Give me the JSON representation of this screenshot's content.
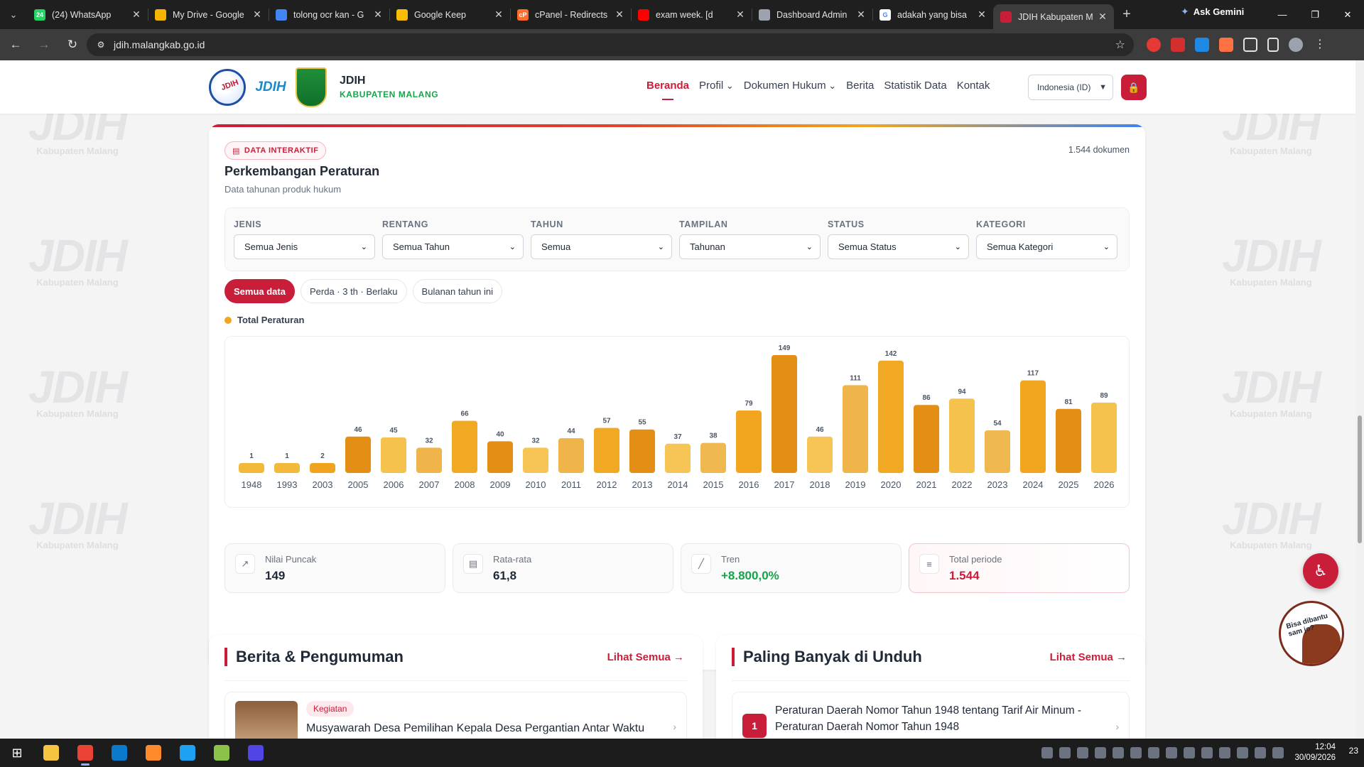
{
  "browser": {
    "tabs": [
      {
        "title": "(24) WhatsApp",
        "icon": "whatsapp-icon",
        "color": "#25d366",
        "badge": "24"
      },
      {
        "title": "My Drive - Google",
        "icon": "google-drive-icon",
        "color": "#f4b400",
        "badge": ""
      },
      {
        "title": "tolong ocr kan - G",
        "icon": "gemini-icon",
        "color": "#4285f4",
        "badge": ""
      },
      {
        "title": "Google Keep",
        "icon": "keep-icon",
        "color": "#fbbc04",
        "badge": ""
      },
      {
        "title": "cPanel - Redirects",
        "icon": "cpanel-icon",
        "color": "#ff6c2c",
        "badge": "cP"
      },
      {
        "title": "exam week. [d",
        "icon": "youtube-icon",
        "color": "#ff0000",
        "badge": ""
      },
      {
        "title": "Dashboard Admin",
        "icon": "admin-icon",
        "color": "#9ca3af",
        "badge": ""
      },
      {
        "title": "adakah yang bisa",
        "icon": "google-icon",
        "color": "#ffffff",
        "badge": "G"
      },
      {
        "title": "JDIH Kabupaten M",
        "icon": "jdih-icon",
        "color": "#c81e3a",
        "badge": ""
      }
    ],
    "active_tab": 8,
    "gemini_label": "Ask Gemini",
    "url": "jdih.malangkab.go.id"
  },
  "site": {
    "brand_title": "JDIH",
    "brand_subtitle": "KABUPATEN MALANG",
    "logo_text": "JDIH",
    "nav": [
      {
        "label": "Beranda",
        "active": true,
        "dropdown": false
      },
      {
        "label": "Profil",
        "active": false,
        "dropdown": true
      },
      {
        "label": "Dokumen Hukum",
        "active": false,
        "dropdown": true
      },
      {
        "label": "Berita",
        "active": false,
        "dropdown": false
      },
      {
        "label": "Statistik Data",
        "active": false,
        "dropdown": false
      },
      {
        "label": "Kontak",
        "active": false,
        "dropdown": false
      }
    ],
    "language": "Indonesia (ID)",
    "watermark_text": "Kabupaten Malang"
  },
  "card": {
    "badge": "DATA INTERAKTIF",
    "doc_count": "1.544 dokumen",
    "title": "Perkembangan Peraturan",
    "subtitle": "Data tahunan produk hukum",
    "filters": [
      {
        "label": "JENIS",
        "value": "Semua Jenis"
      },
      {
        "label": "RENTANG",
        "value": "Semua Tahun"
      },
      {
        "label": "TAHUN",
        "value": "Semua"
      },
      {
        "label": "TAMPILAN",
        "value": "Tahunan"
      },
      {
        "label": "STATUS",
        "value": "Semua Status"
      },
      {
        "label": "KATEGORI",
        "value": "Semua Kategori"
      }
    ],
    "presets": [
      {
        "label": "Semua data",
        "active": true
      },
      {
        "label": "Perda · 3 th · Berlaku",
        "active": false
      },
      {
        "label": "Bulanan tahun ini",
        "active": false
      }
    ],
    "stats": [
      {
        "label": "Nilai Puncak",
        "value": "149",
        "icon": "trending-up-icon",
        "tone": "default"
      },
      {
        "label": "Rata-rata",
        "value": "61,8",
        "icon": "document-icon",
        "tone": "default"
      },
      {
        "label": "Tren",
        "value": "+8.800,0%",
        "icon": "line-chart-icon",
        "tone": "green"
      },
      {
        "label": "Total periode",
        "value": "1.544",
        "icon": "layers-icon",
        "tone": "red"
      }
    ]
  },
  "chart_data": {
    "type": "bar",
    "categories": [
      "1948",
      "1993",
      "2003",
      "2005",
      "2006",
      "2007",
      "2008",
      "2009",
      "2010",
      "2011",
      "2012",
      "2013",
      "2014",
      "2015",
      "2016",
      "2017",
      "2018",
      "2019",
      "2020",
      "2021",
      "2022",
      "2023",
      "2024",
      "2025",
      "2026"
    ],
    "series": [
      {
        "name": "Total Peraturan",
        "color": "#f2a51f",
        "values": [
          1,
          1,
          2,
          46,
          45,
          32,
          66,
          40,
          32,
          44,
          57,
          55,
          37,
          38,
          79,
          149,
          46,
          111,
          142,
          86,
          94,
          54,
          117,
          81,
          89
        ]
      }
    ],
    "bar_colors": [
      "#f3b93b",
      "#f3b93b",
      "#f0a41d",
      "#e38e14",
      "#f6c24e",
      "#efb44a",
      "#f1a823",
      "#e38e14",
      "#f7c555",
      "#efb44a",
      "#f1a823",
      "#e38e14",
      "#f7c555",
      "#f0b851",
      "#f2a51f",
      "#e38e14",
      "#f7c555",
      "#efb44a",
      "#f1a823",
      "#e38e14",
      "#f6c24e",
      "#f0b851",
      "#f2a51f",
      "#e38e14",
      "#f6c24e"
    ],
    "ylim": [
      0,
      149
    ],
    "data_labels": true,
    "grid": false,
    "legend": "top-left"
  },
  "news": {
    "title": "Berita & Pengumuman",
    "link": "Lihat Semua",
    "items": [
      {
        "tag": "Kegiatan",
        "title": "Musyawarah Desa Pemilihan Kepala Desa Pergantian Antar Waktu"
      }
    ]
  },
  "downloads": {
    "title": "Paling Banyak di Unduh",
    "link": "Lihat Semua",
    "items": [
      {
        "rank": "1",
        "title": "Peraturan Daerah Nomor Tahun 1948 tentang Tarif Air Minum - Peraturan Daerah Nomor Tahun 1948"
      }
    ]
  },
  "mascot": {
    "text": "Bisa dibantu sam jo?"
  },
  "taskbar": {
    "apps": [
      {
        "icon": "file-explorer-icon",
        "color": "#f5c542",
        "active": false
      },
      {
        "icon": "chrome-icon",
        "color": "#ea4335",
        "active": true
      },
      {
        "icon": "vscode-icon",
        "color": "#0a7acc",
        "active": false
      },
      {
        "icon": "sublime-icon",
        "color": "#ff8a2b",
        "active": false
      },
      {
        "icon": "edge-icon",
        "color": "#1da1f2",
        "active": false
      },
      {
        "icon": "snipping-icon",
        "color": "#8bc34a",
        "active": false
      },
      {
        "icon": "app-a-icon",
        "color": "#4f46e5",
        "active": false
      }
    ],
    "time": "12:04",
    "date": "30/09/2026",
    "notifications": "23"
  }
}
